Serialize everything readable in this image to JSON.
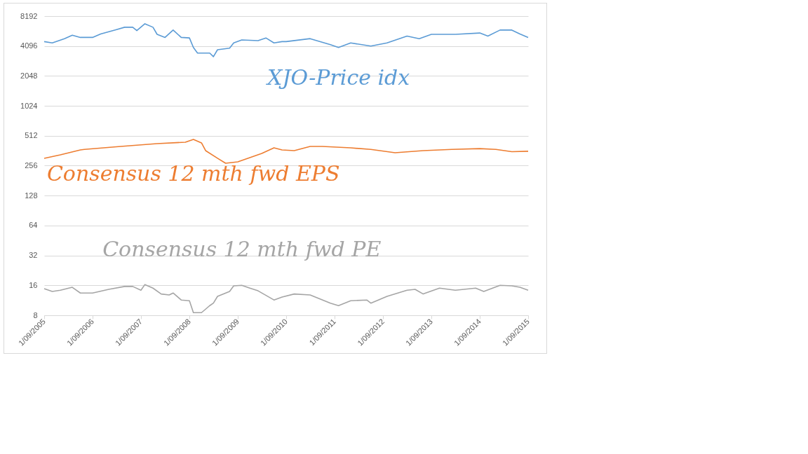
{
  "chart_data": {
    "type": "line",
    "log": "y",
    "grid": "y",
    "legend": false,
    "xlim": [
      "2005-09-01",
      "2015-09-01"
    ],
    "xticks": [
      {
        "value": "2005-09-01",
        "label": "1/09/2005"
      },
      {
        "value": "2006-09-01",
        "label": "1/09/2006"
      },
      {
        "value": "2007-09-01",
        "label": "1/09/2007"
      },
      {
        "value": "2008-09-01",
        "label": "1/09/2008"
      },
      {
        "value": "2009-09-01",
        "label": "1/09/2009"
      },
      {
        "value": "2010-09-01",
        "label": "1/09/2010"
      },
      {
        "value": "2011-09-01",
        "label": "1/09/2011"
      },
      {
        "value": "2012-09-01",
        "label": "1/09/2012"
      },
      {
        "value": "2013-09-01",
        "label": "1/09/2013"
      },
      {
        "value": "2014-09-01",
        "label": "1/09/2014"
      },
      {
        "value": "2015-09-01",
        "label": "1/09/2015"
      }
    ],
    "ylim": [
      8,
      8192
    ],
    "yticks": [
      8,
      16,
      32,
      64,
      128,
      256,
      512,
      1024,
      2048,
      4096,
      8192
    ],
    "series": [
      {
        "name": "XJO-Price idx",
        "color": "#5b9bd5",
        "x": [
          "2005-09",
          "2005-11",
          "2006-02",
          "2006-04",
          "2006-06",
          "2006-09",
          "2006-11",
          "2007-03",
          "2007-05",
          "2007-07",
          "2007-08",
          "2007-10",
          "2007-12",
          "2008-01",
          "2008-03",
          "2008-05",
          "2008-07",
          "2008-09",
          "2008-10",
          "2008-11",
          "2009-02",
          "2009-03",
          "2009-04",
          "2009-07",
          "2009-08",
          "2009-10",
          "2010-02",
          "2010-04",
          "2010-06",
          "2010-08",
          "2010-09",
          "2011-03",
          "2011-08",
          "2011-10",
          "2012-01",
          "2012-06",
          "2012-10",
          "2013-03",
          "2013-06",
          "2013-09",
          "2014-03",
          "2014-09",
          "2014-11",
          "2015-02",
          "2015-05",
          "2015-07",
          "2015-09"
        ],
        "values": [
          4540,
          4400,
          4860,
          5260,
          5000,
          5000,
          5420,
          6000,
          6330,
          6330,
          5860,
          6860,
          6330,
          5370,
          5000,
          5930,
          5000,
          4940,
          3960,
          3480,
          3480,
          3200,
          3760,
          3900,
          4400,
          4720,
          4640,
          4940,
          4400,
          4540,
          4540,
          4860,
          4230,
          3960,
          4400,
          4096,
          4400,
          5160,
          4860,
          5370,
          5370,
          5540,
          5160,
          5930,
          5930,
          5420,
          5000
        ]
      },
      {
        "name": "Consensus 12 mth fwd EPS",
        "color": "#ed7d31",
        "x": [
          "2005-09",
          "2006-01",
          "2006-06",
          "2006-07",
          "2007-04",
          "2008-01",
          "2008-08",
          "2008-10",
          "2008-12",
          "2009-01",
          "2009-04",
          "2009-06",
          "2009-09",
          "2010-03",
          "2010-06",
          "2010-08",
          "2010-11",
          "2011-03",
          "2011-06",
          "2012-01",
          "2012-06",
          "2012-12",
          "2013-07",
          "2014-02",
          "2014-09",
          "2015-01",
          "2015-05",
          "2015-09"
        ],
        "values": [
          304,
          329,
          369,
          373,
          400,
          427,
          441,
          470,
          434,
          363,
          304,
          271,
          280,
          340,
          387,
          369,
          363,
          400,
          400,
          387,
          373,
          346,
          363,
          373,
          380,
          373,
          354,
          358
        ]
      },
      {
        "name": "Consensus 12 mth fwd PE",
        "color": "#a5a5a5",
        "x": [
          "2005-09",
          "2005-11",
          "2006-01",
          "2006-04",
          "2006-06",
          "2006-09",
          "2007-01",
          "2007-05",
          "2007-07",
          "2007-09",
          "2007-10",
          "2007-12",
          "2008-02",
          "2008-04",
          "2008-05",
          "2008-07",
          "2008-09",
          "2008-10",
          "2008-12",
          "2009-02",
          "2009-03",
          "2009-04",
          "2009-07",
          "2009-08",
          "2009-10",
          "2009-12",
          "2010-02",
          "2010-06",
          "2010-08",
          "2010-11",
          "2011-03",
          "2011-08",
          "2011-10",
          "2012-01",
          "2012-05",
          "2012-06",
          "2012-10",
          "2013-03",
          "2013-05",
          "2013-07",
          "2013-11",
          "2014-03",
          "2014-08",
          "2014-10",
          "2015-02",
          "2015-05",
          "2015-07",
          "2015-09"
        ],
        "values": [
          14.8,
          13.9,
          14.3,
          15.3,
          13.4,
          13.4,
          14.6,
          15.6,
          15.6,
          14.3,
          16.3,
          15.0,
          13.1,
          12.8,
          13.4,
          11.4,
          11.2,
          8.5,
          8.5,
          10.0,
          10.6,
          12.4,
          13.9,
          15.8,
          16,
          15.0,
          14.1,
          11.4,
          12.2,
          13.1,
          12.8,
          10.6,
          10.0,
          11.2,
          11.4,
          10.6,
          12.4,
          14.3,
          14.6,
          13.1,
          15.0,
          14.3,
          15.0,
          13.9,
          16,
          15.8,
          15.3,
          14.3
        ]
      }
    ]
  }
}
